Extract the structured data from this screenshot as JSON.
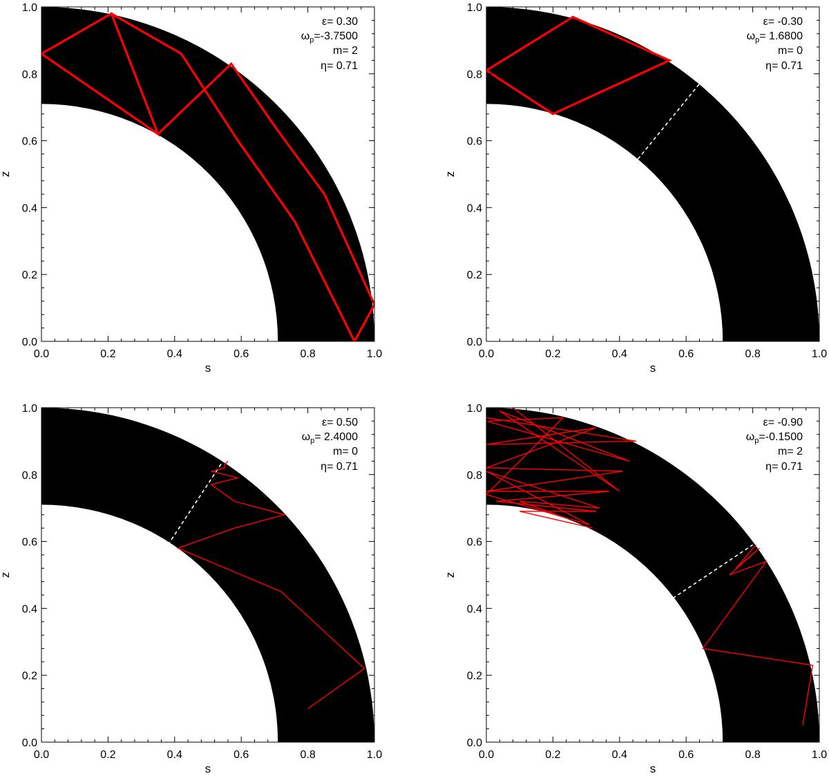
{
  "figure": {
    "colors": {
      "shell": "#000000",
      "ray": "#ff0000",
      "separator": "#ffffff",
      "background": "#ffffff",
      "axis": "#000000"
    }
  },
  "chart_data": [
    {
      "type": "line",
      "panel": "top-left",
      "xlabel": "s",
      "ylabel": "z",
      "xlim": [
        0,
        1
      ],
      "ylim": [
        0,
        1
      ],
      "xticks": [
        "0.0",
        "0.2",
        "0.4",
        "0.6",
        "0.8",
        "1.0"
      ],
      "yticks": [
        "0.0",
        "0.2",
        "0.4",
        "0.6",
        "0.8",
        "1.0"
      ],
      "grid": false,
      "shell": {
        "inner_radius": 0.71,
        "outer_radius": 1.0
      },
      "params": {
        "epsilon": "ε= 0.30",
        "omega": "ω",
        "omega_sub": "p",
        "omega_val": "=-3.7500",
        "m": "m= 2",
        "eta": "η= 0.71"
      },
      "ray_width": "thick",
      "rays": [
        {
          "points": [
            [
              0.0,
              0.86
            ],
            [
              0.21,
              0.98
            ],
            [
              0.35,
              0.62
            ],
            [
              0.0,
              0.86
            ]
          ]
        },
        {
          "points": [
            [
              0.21,
              0.98
            ],
            [
              0.42,
              0.86
            ],
            [
              0.59,
              0.6
            ],
            [
              0.76,
              0.36
            ],
            [
              0.94,
              0.0
            ],
            [
              1.0,
              0.11
            ],
            [
              0.85,
              0.44
            ],
            [
              0.71,
              0.63
            ],
            [
              0.57,
              0.83
            ],
            [
              0.35,
              0.62
            ]
          ]
        }
      ],
      "separators": []
    },
    {
      "type": "line",
      "panel": "top-right",
      "xlabel": "s",
      "ylabel": "z",
      "xlim": [
        0,
        1
      ],
      "ylim": [
        0,
        1
      ],
      "xticks": [
        "0.0",
        "0.2",
        "0.4",
        "0.6",
        "0.8",
        "1.0"
      ],
      "yticks": [
        "0.0",
        "0.2",
        "0.4",
        "0.6",
        "0.8",
        "1.0"
      ],
      "grid": false,
      "shell": {
        "inner_radius": 0.71,
        "outer_radius": 1.0
      },
      "params": {
        "epsilon": "ε= -0.30",
        "omega": "ω",
        "omega_sub": "p",
        "omega_val": "= 1.6800",
        "m": "m= 0",
        "eta": "η= 0.71"
      },
      "ray_width": "thick",
      "rays": [
        {
          "points": [
            [
              0.0,
              0.81
            ],
            [
              0.26,
              0.97
            ],
            [
              0.55,
              0.84
            ],
            [
              0.2,
              0.68
            ],
            [
              0.0,
              0.81
            ]
          ]
        }
      ],
      "separators": [
        {
          "from": [
            0.455,
            0.545
          ],
          "to": [
            0.64,
            0.77
          ]
        }
      ]
    },
    {
      "type": "line",
      "panel": "bottom-left",
      "xlabel": "s",
      "ylabel": "z",
      "xlim": [
        0,
        1
      ],
      "ylim": [
        0,
        1
      ],
      "xticks": [
        "0.0",
        "0.2",
        "0.4",
        "0.6",
        "0.8",
        "1.0"
      ],
      "yticks": [
        "0.0",
        "0.2",
        "0.4",
        "0.6",
        "0.8",
        "1.0"
      ],
      "grid": false,
      "shell": {
        "inner_radius": 0.71,
        "outer_radius": 1.0
      },
      "params": {
        "epsilon": "ε= 0.50",
        "omega": "ω",
        "omega_sub": "p",
        "omega_val": "= 2.4000",
        "m": "m= 0",
        "eta": "η= 0.71"
      },
      "ray_width": "thin",
      "rays": [
        {
          "points": [
            [
              0.8,
              0.1
            ],
            [
              0.97,
              0.22
            ],
            [
              0.72,
              0.45
            ],
            [
              0.41,
              0.58
            ],
            [
              0.58,
              0.64
            ],
            [
              0.73,
              0.68
            ],
            [
              0.58,
              0.72
            ],
            [
              0.51,
              0.77
            ],
            [
              0.59,
              0.79
            ],
            [
              0.51,
              0.81
            ],
            [
              0.55,
              0.82
            ],
            [
              0.55,
              0.83
            ],
            [
              0.56,
              0.84
            ],
            [
              0.555,
              0.835
            ]
          ]
        }
      ],
      "separators": [
        {
          "from": [
            0.38,
            0.59
          ],
          "to": [
            0.545,
            0.84
          ]
        }
      ]
    },
    {
      "type": "line",
      "panel": "bottom-right",
      "xlabel": "s",
      "ylabel": "z",
      "xlim": [
        0,
        1
      ],
      "ylim": [
        0,
        1
      ],
      "xticks": [
        "0.0",
        "0.2",
        "0.4",
        "0.6",
        "0.8",
        "1.0"
      ],
      "yticks": [
        "0.0",
        "0.2",
        "0.4",
        "0.6",
        "0.8",
        "1.0"
      ],
      "grid": false,
      "shell": {
        "inner_radius": 0.71,
        "outer_radius": 1.0
      },
      "params": {
        "epsilon": "ε= -0.90",
        "omega": "ω",
        "omega_sub": "p",
        "omega_val": "=-0.1500",
        "m": "m= 2",
        "eta": "η= 0.71"
      },
      "ray_width": "thin",
      "rays": [
        {
          "points": [
            [
              0.0,
              0.97
            ],
            [
              0.45,
              0.9
            ],
            [
              0.0,
              0.89
            ],
            [
              0.33,
              0.94
            ],
            [
              0.0,
              0.82
            ],
            [
              0.41,
              0.81
            ],
            [
              0.0,
              0.75
            ],
            [
              0.37,
              0.75
            ],
            [
              0.03,
              0.72
            ],
            [
              0.33,
              0.69
            ],
            [
              0.1,
              0.69
            ],
            [
              0.32,
              0.64
            ]
          ]
        },
        {
          "points": [
            [
              0.08,
              1.0
            ],
            [
              0.4,
              0.75
            ],
            [
              0.04,
              0.99
            ],
            [
              0.43,
              0.84
            ],
            [
              0.0,
              0.96
            ],
            [
              0.23,
              0.97
            ],
            [
              0.0,
              0.74
            ],
            [
              0.31,
              0.65
            ],
            [
              0.0,
              0.81
            ],
            [
              0.34,
              0.7
            ],
            [
              0.1,
              0.72
            ],
            [
              0.24,
              0.67
            ]
          ]
        },
        {
          "points": [
            [
              0.95,
              0.05
            ],
            [
              0.98,
              0.23
            ],
            [
              0.65,
              0.28
            ],
            [
              0.84,
              0.54
            ],
            [
              0.73,
              0.5
            ],
            [
              0.82,
              0.58
            ],
            [
              0.75,
              0.52
            ],
            [
              0.81,
              0.59
            ]
          ]
        }
      ],
      "separators": [
        {
          "from": [
            0.0,
            0.0
          ],
          "to": [
            0.0,
            0.0
          ]
        },
        {
          "from": [
            0.56,
            0.43
          ],
          "to": [
            0.8,
            0.59
          ]
        }
      ]
    }
  ]
}
